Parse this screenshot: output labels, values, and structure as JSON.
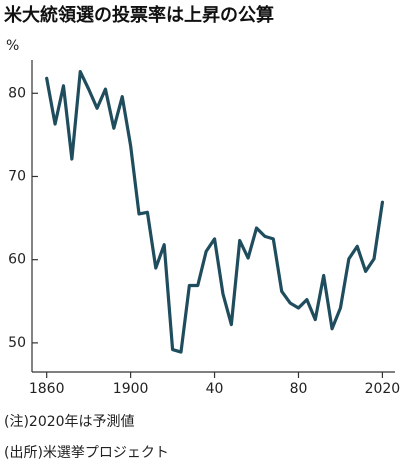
{
  "chart_data": {
    "type": "line",
    "title": "米大統領選の投票率は上昇の公算",
    "y_label": "%",
    "notes": [
      "(注)2020年は予測値",
      "(出所)米選挙プロジェクト"
    ],
    "x": [
      1860,
      1864,
      1868,
      1872,
      1876,
      1880,
      1884,
      1888,
      1892,
      1896,
      1900,
      1904,
      1908,
      1912,
      1916,
      1920,
      1924,
      1928,
      1932,
      1936,
      1940,
      1944,
      1948,
      1952,
      1956,
      1960,
      1964,
      1968,
      1972,
      1976,
      1980,
      1984,
      1988,
      1992,
      1996,
      2000,
      2004,
      2008,
      2012,
      2016,
      2020
    ],
    "series": [
      {
        "name": "投票率",
        "color": "#1f4d5e",
        "values": [
          81.8,
          76.3,
          80.9,
          72.1,
          82.6,
          80.5,
          78.2,
          80.5,
          75.8,
          79.6,
          73.7,
          65.5,
          65.7,
          59.0,
          61.8,
          49.2,
          48.9,
          56.9,
          56.9,
          61.0,
          62.5,
          55.9,
          52.2,
          62.3,
          60.2,
          63.8,
          62.8,
          62.5,
          56.2,
          54.8,
          54.2,
          55.2,
          52.8,
          58.1,
          51.7,
          54.2,
          60.1,
          61.6,
          58.6,
          60.1,
          66.9
        ]
      }
    ],
    "xlim": [
      1853,
      2026
    ],
    "xticks": [
      1860,
      1900,
      {
        "value": 1940,
        "label": "40"
      },
      {
        "value": 1980,
        "label": "80"
      },
      2020
    ],
    "ylim": [
      46.5,
      84
    ],
    "yticks": [
      50,
      60,
      70,
      80
    ],
    "grid": false
  }
}
